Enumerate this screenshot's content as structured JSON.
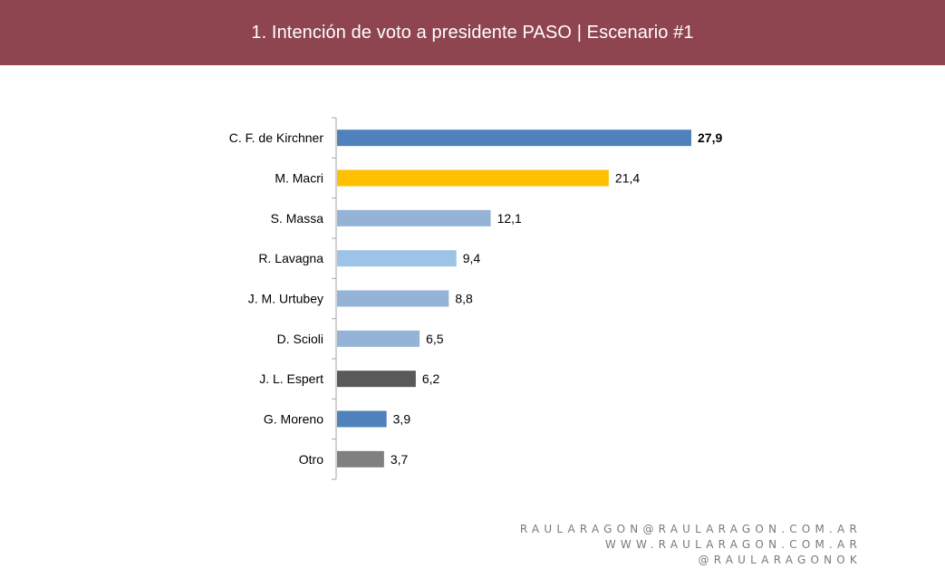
{
  "header": {
    "title": "1. Intención de voto a presidente PASO | Escenario #1"
  },
  "chart_data": {
    "type": "bar",
    "orientation": "horizontal",
    "categories": [
      "C. F. de Kirchner",
      "M. Macri",
      "S. Massa",
      "R. Lavagna",
      "J. M. Urtubey",
      "D. Scioli",
      "J. L. Espert",
      "G. Moreno",
      "Otro"
    ],
    "values": [
      27.9,
      21.4,
      12.1,
      9.4,
      8.8,
      6.5,
      6.2,
      3.9,
      3.7
    ],
    "value_labels": [
      "27,9",
      "21,4",
      "12,1",
      "9,4",
      "8,8",
      "6,5",
      "6,2",
      "3,9",
      "3,7"
    ],
    "bar_colors": [
      "#4f81bd",
      "#ffc000",
      "#95b3d7",
      "#9dc3e6",
      "#95b3d7",
      "#95b3d7",
      "#595959",
      "#4f81bd",
      "#808080"
    ],
    "highlight_first_label_bold": true,
    "xlim": [
      0,
      30
    ],
    "grid": false,
    "legend": "none"
  },
  "footer": {
    "lines": [
      "RAULARAGON@RAULARAGON.COM.AR",
      "WWW.RAULARAGON.COM.AR",
      "@RAULARAGONOK"
    ]
  }
}
